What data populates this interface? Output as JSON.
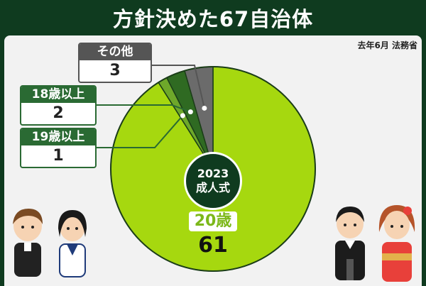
{
  "header": {
    "title": "方針決めた67自治体"
  },
  "source": "去年6月 法務省",
  "center_label": [
    "2023",
    "成人式"
  ],
  "chart_data": {
    "type": "pie",
    "title": "方針決めた67自治体",
    "total": 67,
    "slices": [
      {
        "label": "20歳",
        "value": 61,
        "color": "#a6d80f"
      },
      {
        "label": "19歳以上",
        "value": 1,
        "color": "#6ea82a"
      },
      {
        "label": "18歳以上",
        "value": 2,
        "color": "#2f6a22"
      },
      {
        "label": "その他",
        "value": 3,
        "color": "#6b6b6b"
      }
    ]
  },
  "labels": {
    "main": {
      "cat": "20歳",
      "val": "61"
    },
    "other": {
      "cat": "その他",
      "val": "3"
    },
    "age18": {
      "cat": "18歳以上",
      "val": "2"
    },
    "age19": {
      "cat": "19歳以上",
      "val": "1"
    }
  },
  "illustrations": [
    "student-boy-icon",
    "student-girl-icon",
    "hakama-man-icon",
    "kimono-woman-icon"
  ]
}
